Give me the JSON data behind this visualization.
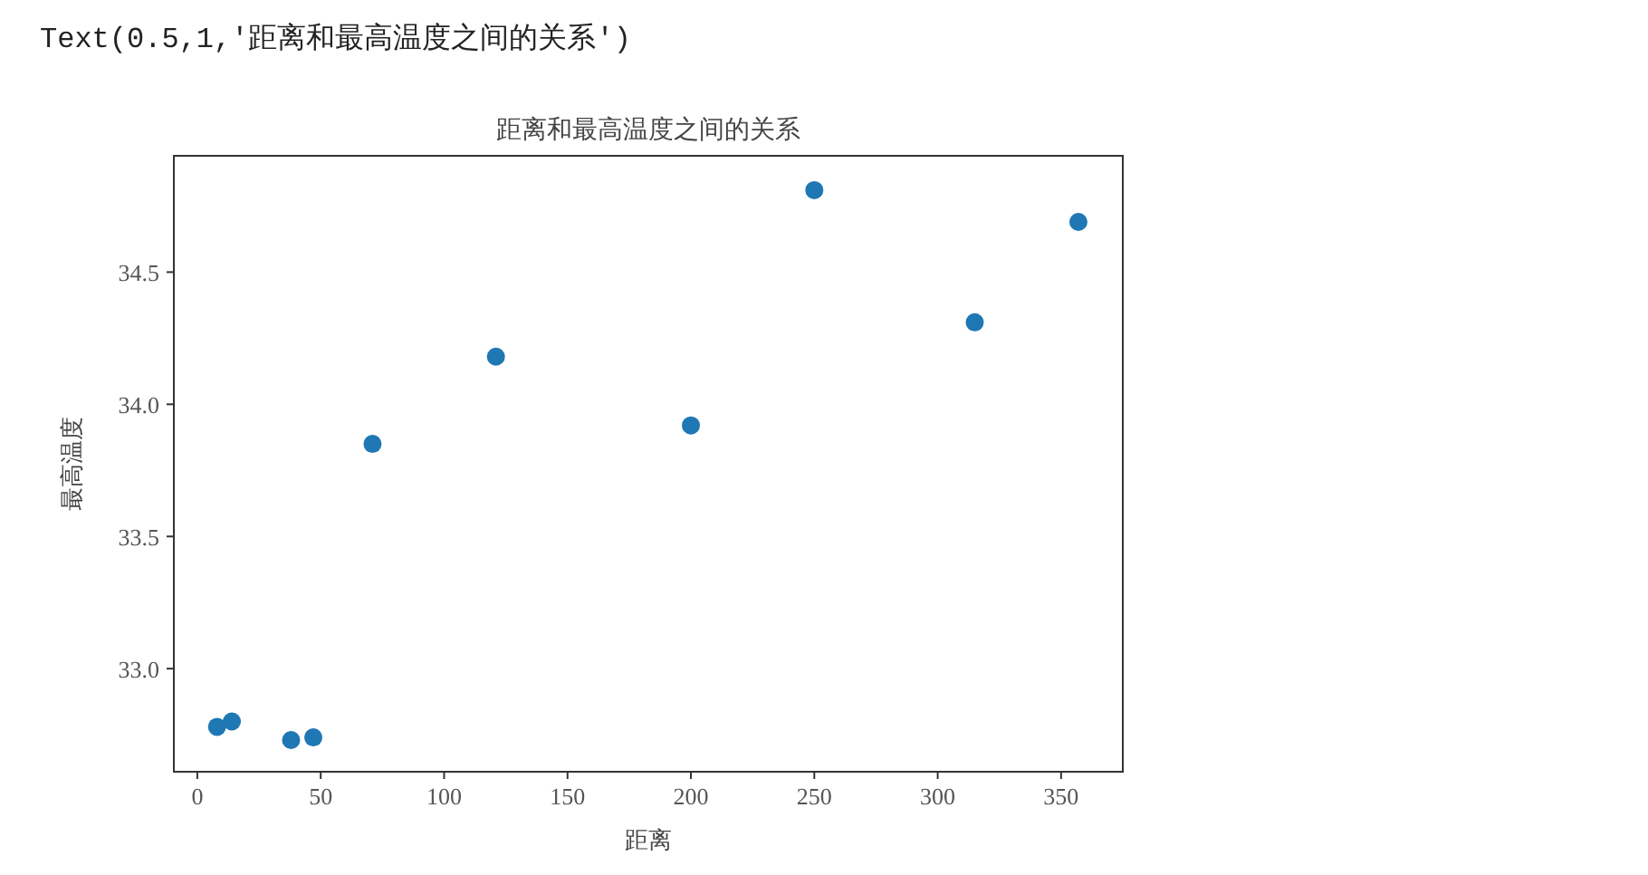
{
  "chart_data": {
    "type": "scatter",
    "title": "距离和最高温度之间的关系",
    "xlabel": "距离",
    "ylabel": "最高温度",
    "annotations": [
      "Text(0.5,1,'距离和最高温度之间的关系')"
    ],
    "x": [
      8,
      14,
      38,
      47,
      71,
      121,
      200,
      250,
      315,
      357
    ],
    "series": [
      {
        "color": "#1f77b4",
        "values": [
          32.78,
          32.8,
          32.73,
          32.74,
          33.85,
          34.18,
          33.92,
          34.81,
          34.31,
          34.69
        ]
      }
    ],
    "marker": "circle",
    "xlim": [
      -9.5,
      375
    ],
    "ylim": [
      32.61,
      34.94
    ],
    "xticks": [
      0,
      50,
      100,
      150,
      200,
      250,
      300,
      350
    ],
    "yticks": [
      {
        "value": 33,
        "label": "33.0"
      },
      33.5,
      {
        "value": 34,
        "label": "34.0"
      },
      34.5
    ],
    "grid": false
  }
}
